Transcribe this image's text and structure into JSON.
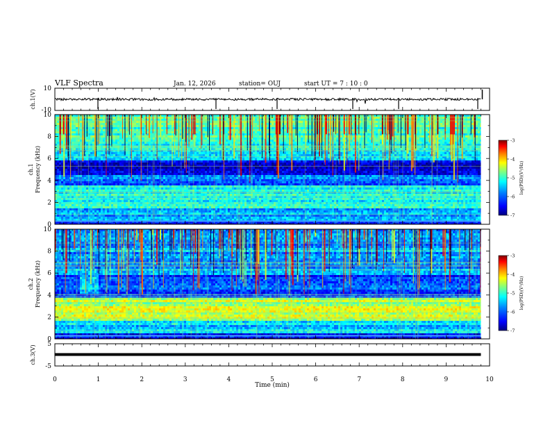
{
  "header": {
    "title": "VLF Spectra",
    "date": "Jan. 12, 2026",
    "station": "station= OUJ",
    "start": "start UT =  7 : 10 : 0"
  },
  "chart_data": {
    "type": "heatmap",
    "x": {
      "label": "Time (min)",
      "range": [
        0,
        10
      ],
      "ticks": [
        "0",
        "1",
        "2",
        "3",
        "4",
        "5",
        "6",
        "7",
        "8",
        "9",
        "10"
      ]
    },
    "panels": [
      {
        "id": "ch1-waveform",
        "type": "line",
        "ylabel": "ch.1(V)",
        "ylim": [
          -10,
          10
        ],
        "ytick_labels": [
          "10",
          "-10"
        ],
        "baseline": 0,
        "data_end_min": 9.8
      },
      {
        "id": "ch1-spectrogram",
        "type": "heatmap",
        "ylabel_top": "ch.1",
        "ylabel": "Frequency (kHz)",
        "ylim": [
          0,
          10
        ],
        "ytick_labels": [
          "0",
          "2",
          "4",
          "6",
          "8",
          "10"
        ],
        "data_end_min": 9.8
      },
      {
        "id": "ch2-spectrogram",
        "type": "heatmap",
        "ylabel_top": "ch.2",
        "ylabel": "Frequency (kHz)",
        "ylim": [
          0,
          10
        ],
        "ytick_labels": [
          "0",
          "2",
          "4",
          "6",
          "8",
          "10"
        ],
        "data_end_min": 9.8
      },
      {
        "id": "ch3-waveform",
        "type": "line",
        "ylabel": "ch.3(V)",
        "ylim": [
          -5,
          5
        ],
        "ytick_labels": [
          "5",
          "-5"
        ],
        "baseline": 0,
        "data_end_min": 9.8
      }
    ],
    "colorbar": {
      "label": "log(PSD)(V²/Hz)",
      "range": [
        -7,
        -3
      ],
      "tick_labels": [
        "-3",
        "-4",
        "-5",
        "-6",
        "-7"
      ],
      "colors": [
        "#00007f",
        "#0000ff",
        "#0080ff",
        "#00ffff",
        "#80ff80",
        "#ffff00",
        "#ff8000",
        "#ff0000",
        "#7f0000"
      ]
    }
  }
}
